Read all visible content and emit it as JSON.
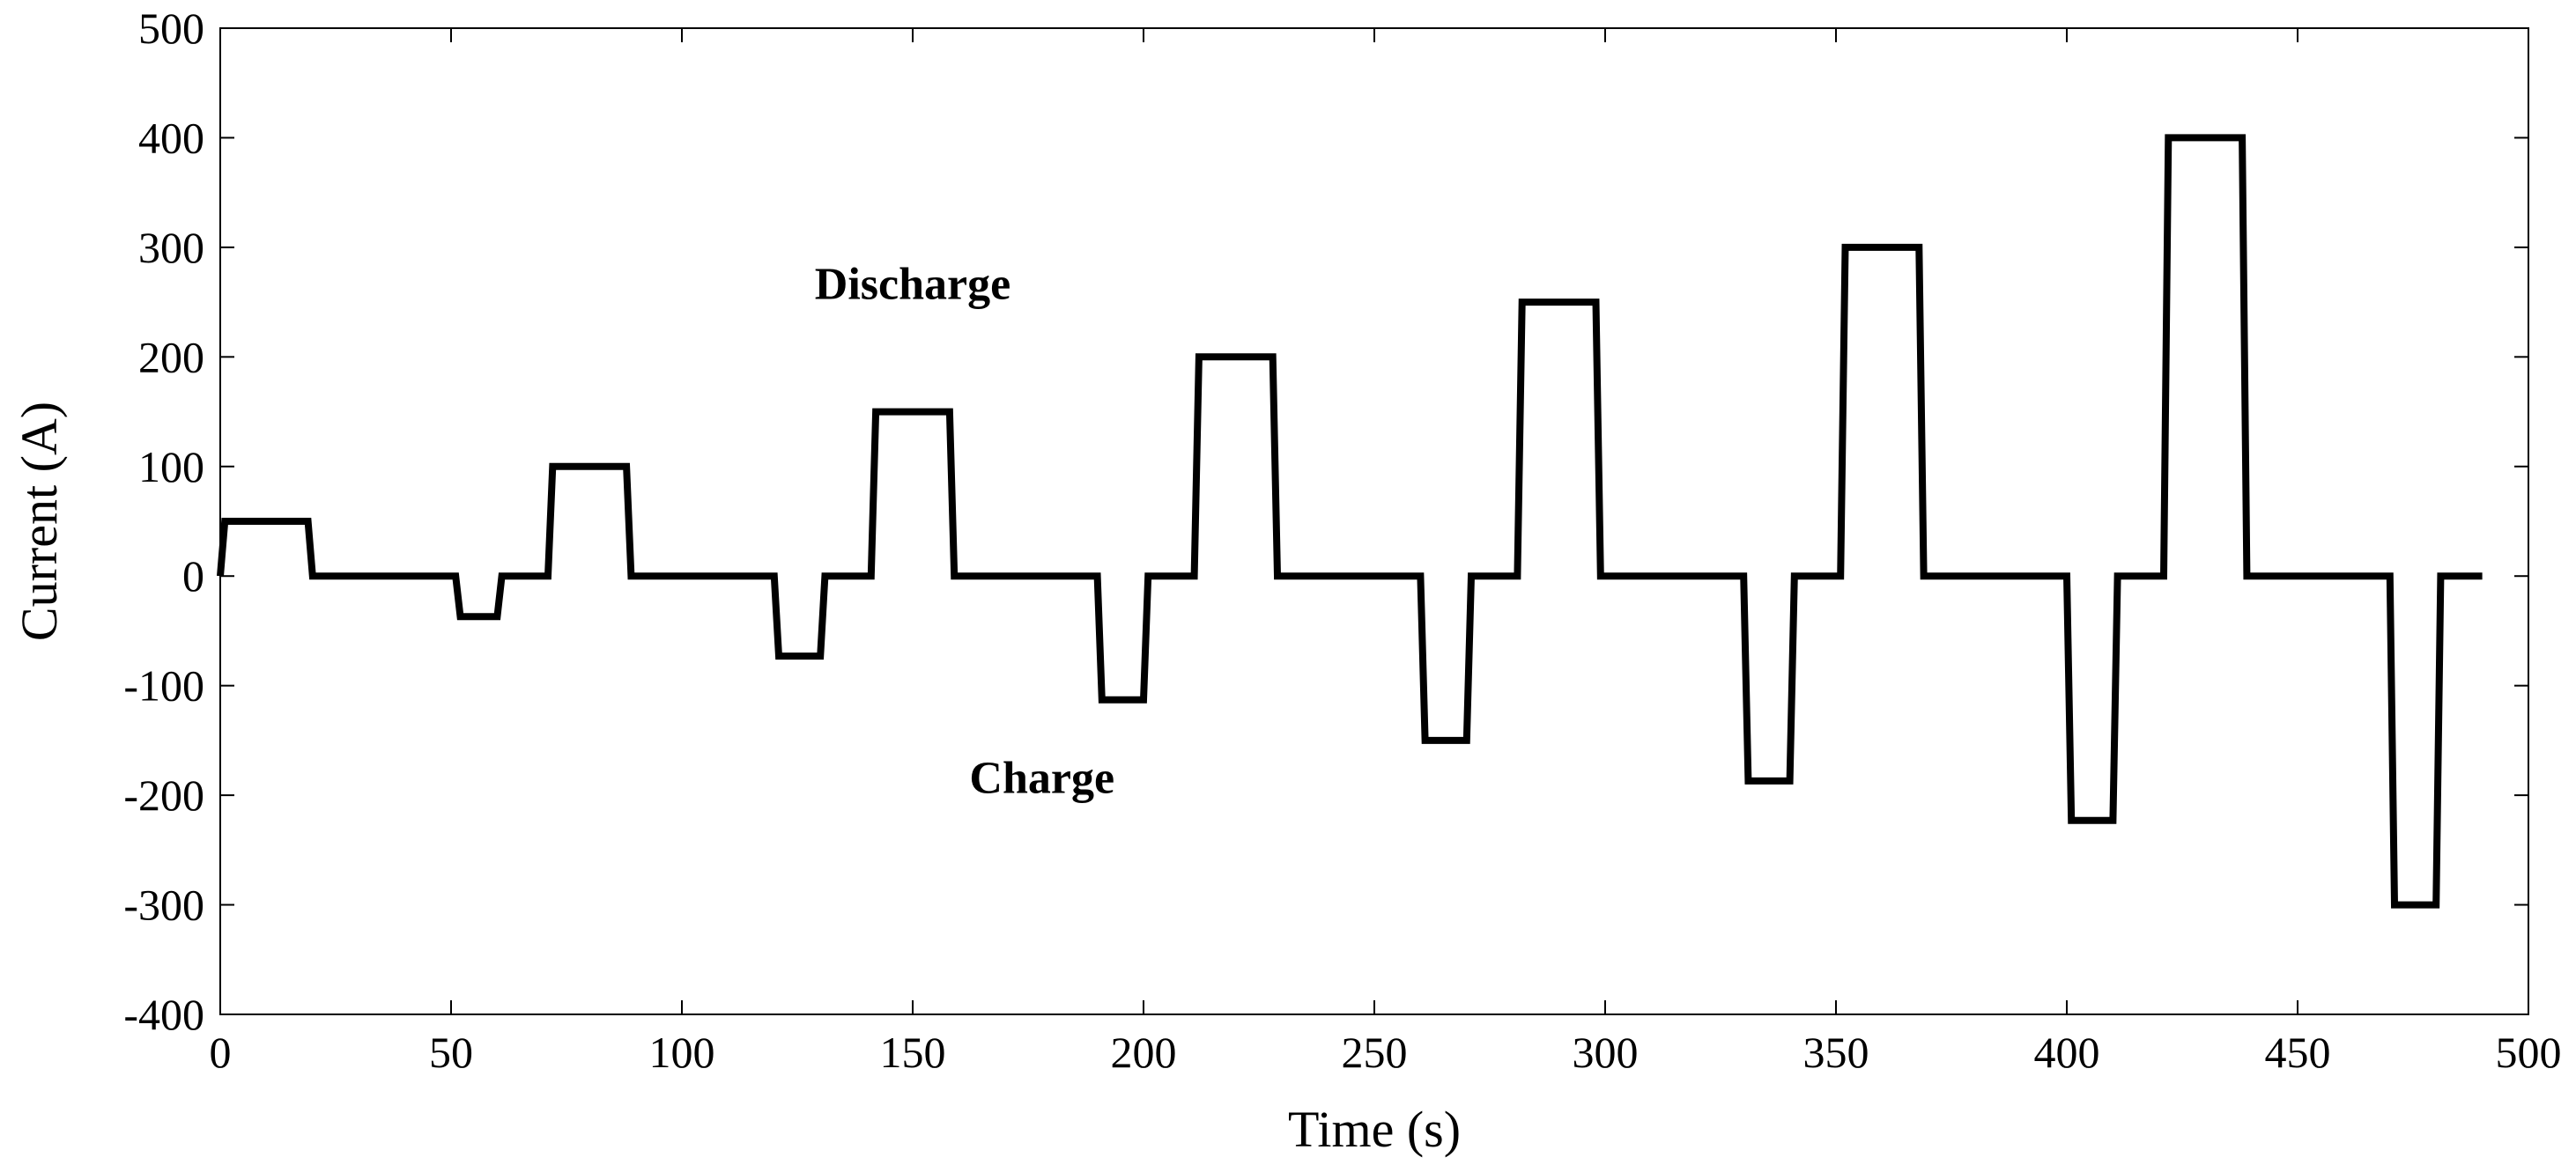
{
  "chart_data": {
    "type": "line",
    "title": "",
    "xlabel": "Time (s)",
    "ylabel": "Current (A)",
    "xlim": [
      0,
      500
    ],
    "ylim": [
      -400,
      500
    ],
    "xticks": [
      0,
      50,
      100,
      150,
      200,
      250,
      300,
      350,
      400,
      450,
      500
    ],
    "yticks": [
      -400,
      -300,
      -200,
      -100,
      0,
      100,
      200,
      300,
      400,
      500
    ],
    "xtick_labels": [
      "0",
      "50",
      "100",
      "150",
      "200",
      "250",
      "300",
      "350",
      "400",
      "450",
      "500"
    ],
    "ytick_labels": [
      "-400",
      "-300",
      "-200",
      "-100",
      "0",
      "100",
      "200",
      "300",
      "400",
      "500"
    ],
    "grid": false,
    "series": [
      {
        "name": "Current",
        "color": "#000000",
        "x": [
          0,
          1,
          19,
          20,
          51,
          52,
          60,
          61,
          71,
          72,
          88,
          89,
          120,
          121,
          130,
          131,
          141,
          142,
          158,
          159,
          190,
          191,
          200,
          201,
          211,
          212,
          228,
          229,
          260,
          261,
          270,
          271,
          281,
          282,
          298,
          299,
          330,
          331,
          340,
          341,
          351,
          352,
          368,
          369,
          400,
          401,
          410,
          411,
          421,
          422,
          438,
          439,
          470,
          471,
          480,
          481,
          490
        ],
        "y": [
          0,
          50,
          50,
          0,
          0,
          -37,
          -37,
          0,
          0,
          100,
          100,
          0,
          0,
          -73,
          -73,
          0,
          0,
          150,
          150,
          0,
          0,
          -113,
          -113,
          0,
          0,
          200,
          200,
          0,
          0,
          -150,
          -150,
          0,
          0,
          250,
          250,
          0,
          0,
          -187,
          -187,
          0,
          0,
          300,
          300,
          0,
          0,
          -223,
          -223,
          0,
          0,
          400,
          400,
          0,
          0,
          -300,
          -300,
          0,
          0
        ]
      }
    ],
    "annotations": [
      {
        "text": "Discharge",
        "x": 150,
        "y": 253
      },
      {
        "text": "Charge",
        "x": 178,
        "y": -198
      }
    ]
  }
}
